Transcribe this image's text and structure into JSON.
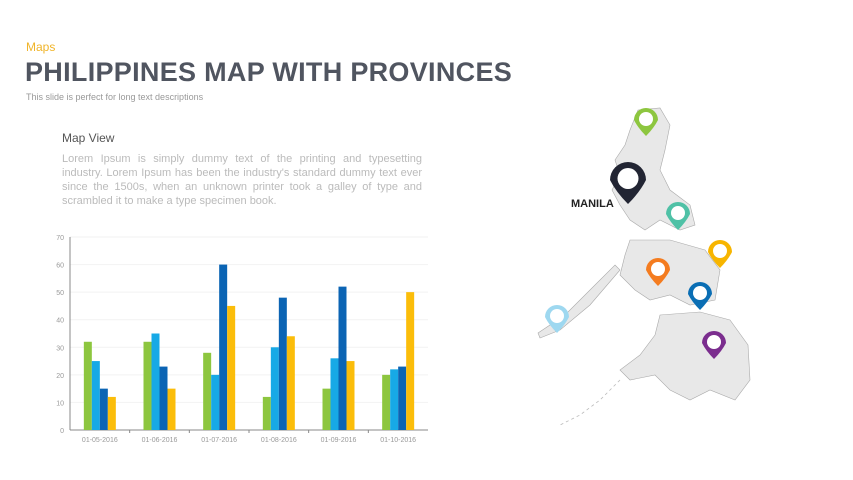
{
  "header": {
    "category": "Maps",
    "title": "PHILIPPINES  MAP WITH  PROVINCES",
    "subtitle": "This slide is perfect for long text descriptions"
  },
  "section": {
    "title": "Map View",
    "body": "Lorem Ipsum is simply dummy text of the printing and typesetting industry. Lorem Ipsum has been the industry's standard dummy text ever since the 1500s, when an unknown printer took a galley of type and scrambled it to make a type specimen book."
  },
  "map": {
    "label": "MANILA",
    "pin_colors": [
      "#8dc63f",
      "#222533",
      "#4fc1a6",
      "#f7b500",
      "#f47c20",
      "#0a6eb4",
      "#9ed8f0",
      "#7b2d8e"
    ]
  },
  "chart_data": {
    "type": "bar",
    "categories": [
      "01-05-2016",
      "01-06-2016",
      "01-07-2016",
      "01-08-2016",
      "01-09-2016",
      "01-10-2016"
    ],
    "series": [
      {
        "values": [
          32,
          32,
          28,
          12,
          15,
          20
        ],
        "color": "#8dc63f"
      },
      {
        "values": [
          25,
          35,
          20,
          30,
          26,
          22
        ],
        "color": "#17a9e6"
      },
      {
        "values": [
          15,
          23,
          60,
          48,
          52,
          23
        ],
        "color": "#0b64b4"
      },
      {
        "values": [
          12,
          15,
          45,
          34,
          25,
          50
        ],
        "color": "#fbbd0a"
      }
    ],
    "yticks": [
      0,
      10,
      20,
      30,
      40,
      50,
      60,
      70
    ],
    "ylim": [
      0,
      70
    ],
    "grid": true
  }
}
